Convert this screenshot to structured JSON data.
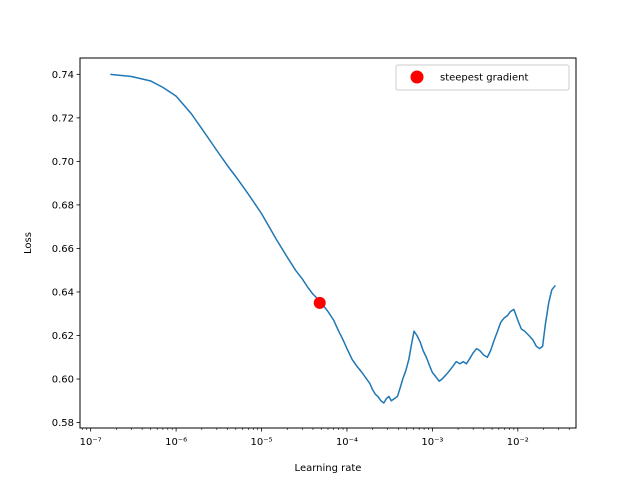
{
  "chart_data": {
    "type": "line",
    "title": "",
    "xlabel": "Learning rate",
    "ylabel": "Loss",
    "xscale": "log",
    "xlim": [
      7.5e-08,
      0.048
    ],
    "ylim": [
      0.5775,
      0.7475
    ],
    "grid": false,
    "legend_position": "top-right",
    "line_color": "#1f77b4",
    "marker_color": "#ff0000",
    "x_ticks": [
      {
        "value": 1e-07,
        "label": "10⁻⁷"
      },
      {
        "value": 1e-06,
        "label": "10⁻⁶"
      },
      {
        "value": 1e-05,
        "label": "10⁻⁵"
      },
      {
        "value": 0.0001,
        "label": "10⁻⁴"
      },
      {
        "value": 0.001,
        "label": "10⁻³"
      },
      {
        "value": 0.01,
        "label": "10⁻²"
      }
    ],
    "y_ticks": [
      0.58,
      0.6,
      0.62,
      0.64,
      0.66,
      0.68,
      0.7,
      0.72,
      0.74
    ],
    "y_tick_labels": [
      "0.58",
      "0.60",
      "0.62",
      "0.64",
      "0.66",
      "0.68",
      "0.70",
      "0.72",
      "0.74"
    ],
    "series": [
      {
        "x": [
          1.7e-07,
          3e-07,
          5e-07,
          7e-07,
          1e-06,
          1.5e-06,
          2e-06,
          3e-06,
          4e-06,
          5e-06,
          7e-06,
          1e-05,
          1.5e-05,
          2e-05,
          2.5e-05,
          3e-05,
          3.5e-05,
          4e-05,
          4.5e-05,
          5e-05,
          6e-05,
          7e-05,
          8e-05,
          9e-05,
          0.0001,
          0.000115,
          0.00013,
          0.00015,
          0.00017,
          0.000185,
          0.0002,
          0.000215,
          0.00023,
          0.00025,
          0.00027,
          0.00029,
          0.00031,
          0.00033,
          0.00036,
          0.00039,
          0.00042,
          0.00045,
          0.00049,
          0.00053,
          0.00057,
          0.00061,
          0.00066,
          0.00072,
          0.00078,
          0.00085,
          0.00093,
          0.001,
          0.0011,
          0.0012,
          0.0013,
          0.00145,
          0.0016,
          0.00175,
          0.0019,
          0.0021,
          0.0023,
          0.0025,
          0.0027,
          0.003,
          0.0033,
          0.0036,
          0.004,
          0.0044,
          0.0048,
          0.0053,
          0.0058,
          0.0063,
          0.0069,
          0.0075,
          0.0082,
          0.009,
          0.01,
          0.011,
          0.012,
          0.0135,
          0.015,
          0.0165,
          0.018,
          0.0195,
          0.021,
          0.023,
          0.025,
          0.0275
        ],
        "y": [
          0.74,
          0.739,
          0.737,
          0.734,
          0.73,
          0.722,
          0.715,
          0.705,
          0.698,
          0.693,
          0.685,
          0.676,
          0.664,
          0.656,
          0.65,
          0.646,
          0.642,
          0.639,
          0.637,
          0.635,
          0.631,
          0.627,
          0.622,
          0.618,
          0.614,
          0.609,
          0.606,
          0.603,
          0.6,
          0.598,
          0.595,
          0.593,
          0.592,
          0.59,
          0.589,
          0.591,
          0.592,
          0.59,
          0.591,
          0.592,
          0.596,
          0.6,
          0.604,
          0.609,
          0.616,
          0.622,
          0.62,
          0.617,
          0.613,
          0.61,
          0.606,
          0.603,
          0.601,
          0.599,
          0.6,
          0.602,
          0.604,
          0.606,
          0.608,
          0.607,
          0.608,
          0.607,
          0.609,
          0.612,
          0.614,
          0.613,
          0.611,
          0.61,
          0.613,
          0.618,
          0.622,
          0.626,
          0.628,
          0.629,
          0.631,
          0.632,
          0.627,
          0.623,
          0.622,
          0.62,
          0.618,
          0.615,
          0.614,
          0.615,
          0.625,
          0.635,
          0.641,
          0.643
        ]
      }
    ],
    "marker": {
      "x": 4.8e-05,
      "y": 0.635,
      "label": "steepest gradient"
    }
  }
}
